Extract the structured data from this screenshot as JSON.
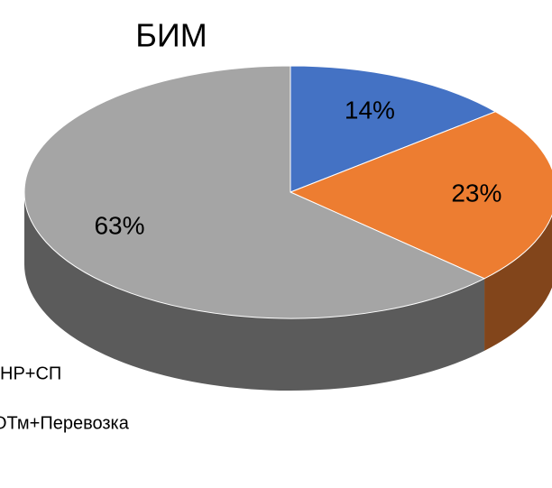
{
  "chart_data": {
    "type": "pie3d",
    "title": "БИМ",
    "categories": [
      "НР+СП",
      "ОТм+Перевозка",
      null
    ],
    "values": [
      14,
      23,
      63
    ],
    "value_labels": [
      "14%",
      "23%",
      "63%"
    ],
    "colors": [
      "#4472c4",
      "#ed7d31",
      "#a5a5a5"
    ]
  }
}
